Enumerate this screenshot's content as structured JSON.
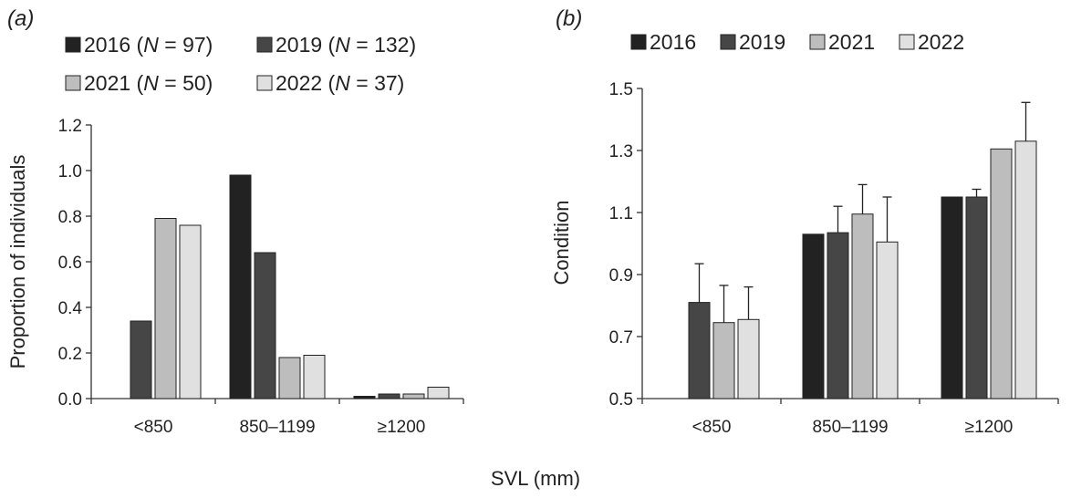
{
  "shared_xlabel": "SVL (mm)",
  "chart_data": [
    {
      "panel_label": "a",
      "type": "bar",
      "ylabel": "Proportion of individuals",
      "xlabel": "SVL (mm)",
      "categories": [
        "<850",
        "850–1199",
        "≥1200"
      ],
      "ylim": [
        0,
        1.2
      ],
      "yticks": [
        "0.0",
        "0.2",
        "0.4",
        "0.6",
        "0.8",
        "1.0",
        "1.2"
      ],
      "yticks_values": [
        0,
        0.2,
        0.4,
        0.6,
        0.8,
        1.0,
        1.2
      ],
      "legend": [
        {
          "year": "2016",
          "n_prefix": " (",
          "n_var": "N",
          "n_suffix": " = 97)"
        },
        {
          "year": "2019",
          "n_prefix": " (",
          "n_var": "N",
          "n_suffix": " = 132)"
        },
        {
          "year": "2021",
          "n_prefix": " (",
          "n_var": "N",
          "n_suffix": " = 50)"
        },
        {
          "year": "2022",
          "n_prefix": " (",
          "n_var": "N",
          "n_suffix": " = 37)"
        }
      ],
      "series": [
        {
          "name": "2016",
          "color": "#222222",
          "values": [
            0.0,
            0.98,
            0.01
          ]
        },
        {
          "name": "2019",
          "color": "#464646",
          "values": [
            0.34,
            0.64,
            0.02
          ]
        },
        {
          "name": "2021",
          "color": "#bdbdbd",
          "values": [
            0.79,
            0.18,
            0.02
          ]
        },
        {
          "name": "2022",
          "color": "#e0e0e0",
          "values": [
            0.76,
            0.19,
            0.05
          ]
        }
      ]
    },
    {
      "panel_label": "b",
      "type": "bar",
      "ylabel": "Condition",
      "xlabel": "SVL (mm)",
      "categories": [
        "<850",
        "850–1199",
        "≥1200"
      ],
      "ylim": [
        0.5,
        1.5
      ],
      "yticks": [
        "0.5",
        "0.7",
        "0.9",
        "1.1",
        "1.3",
        "1.5"
      ],
      "yticks_values": [
        0.5,
        0.7,
        0.9,
        1.1,
        1.3,
        1.5
      ],
      "legend": [
        {
          "year": "2016"
        },
        {
          "year": "2019"
        },
        {
          "year": "2021"
        },
        {
          "year": "2022"
        }
      ],
      "series": [
        {
          "name": "2016",
          "color": "#222222",
          "values": [
            null,
            1.03,
            1.15
          ],
          "errors": [
            null,
            null,
            null
          ]
        },
        {
          "name": "2019",
          "color": "#464646",
          "values": [
            0.81,
            1.035,
            1.15
          ],
          "errors": [
            0.125,
            0.085,
            0.025
          ]
        },
        {
          "name": "2021",
          "color": "#bdbdbd",
          "values": [
            0.745,
            1.095,
            1.305
          ],
          "errors": [
            0.12,
            0.095,
            null
          ]
        },
        {
          "name": "2022",
          "color": "#e0e0e0",
          "values": [
            0.755,
            1.005,
            1.33
          ],
          "errors": [
            0.105,
            0.145,
            0.125
          ]
        }
      ]
    }
  ]
}
